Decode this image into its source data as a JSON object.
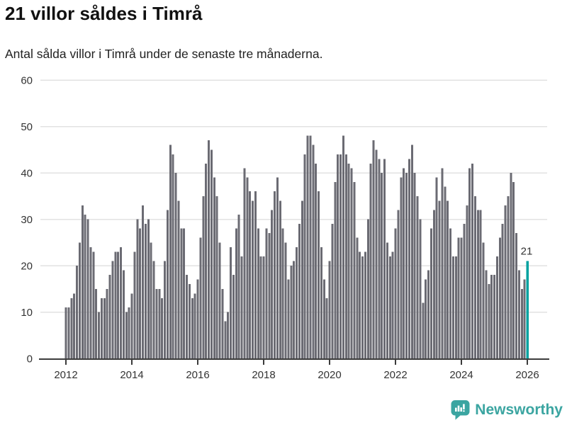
{
  "header": {
    "title": "21 villor såldes i Timrå",
    "subtitle": "Antal sålda villor i Timrå under de senaste tre månaderna."
  },
  "footer": {
    "brand": "Newsworthy"
  },
  "colors": {
    "bar": "#6b6b73",
    "highlight": "#00a2a0",
    "axis": "#3c3c3c",
    "gridline": "#e2e2e2",
    "tick_label": "#333333",
    "brand_teal": "#3ba5a1"
  },
  "chart_data": {
    "type": "bar",
    "title": "21 villor såldes i Timrå",
    "subtitle": "Antal sålda villor i Timrå under de senaste tre månaderna.",
    "x_start": "2012-01",
    "x_interval": "month",
    "x_tick_labels": [
      "2012",
      "2014",
      "2016",
      "2018",
      "2020",
      "2022",
      "2024",
      "2026"
    ],
    "y_ticks": [
      0,
      10,
      20,
      30,
      40,
      50,
      60
    ],
    "ylim": [
      0,
      60
    ],
    "grid": true,
    "legend": "none",
    "highlight_index": 168,
    "highlight_label": "21",
    "values": [
      11,
      11,
      13,
      14,
      20,
      25,
      33,
      31,
      30,
      24,
      23,
      15,
      10,
      13,
      13,
      15,
      18,
      21,
      23,
      23,
      24,
      19,
      10,
      11,
      14,
      23,
      30,
      28,
      33,
      29,
      30,
      25,
      21,
      15,
      15,
      13,
      21,
      32,
      46,
      44,
      40,
      34,
      28,
      28,
      18,
      16,
      13,
      14,
      17,
      26,
      35,
      42,
      47,
      45,
      39,
      35,
      25,
      15,
      8,
      10,
      24,
      18,
      28,
      31,
      22,
      41,
      39,
      36,
      34,
      36,
      28,
      22,
      22,
      28,
      27,
      32,
      36,
      39,
      34,
      28,
      25,
      17,
      20,
      21,
      24,
      29,
      34,
      44,
      48,
      48,
      46,
      42,
      36,
      24,
      17,
      13,
      21,
      29,
      38,
      44,
      44,
      48,
      44,
      42,
      41,
      38,
      26,
      23,
      22,
      23,
      30,
      42,
      47,
      45,
      43,
      40,
      43,
      25,
      22,
      23,
      28,
      32,
      39,
      41,
      40,
      43,
      46,
      40,
      35,
      30,
      12,
      17,
      19,
      28,
      32,
      39,
      34,
      41,
      37,
      34,
      28,
      22,
      22,
      26,
      26,
      29,
      33,
      41,
      42,
      35,
      32,
      32,
      25,
      19,
      16,
      18,
      18,
      22,
      26,
      29,
      33,
      35,
      40,
      38,
      27,
      19,
      15,
      17,
      21
    ]
  }
}
